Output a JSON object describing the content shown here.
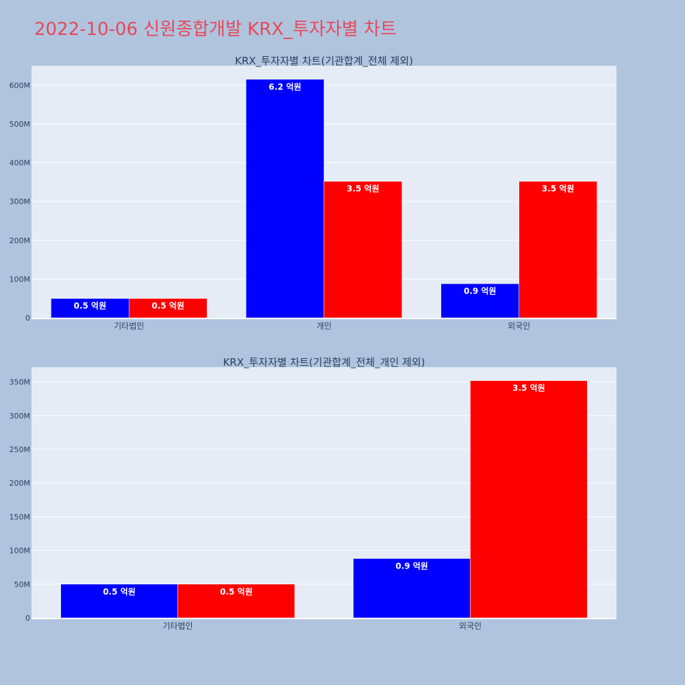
{
  "page": {
    "title": "2022-10-06 신원종합개발 KRX_투자자별 차트"
  },
  "chart_data": [
    {
      "type": "bar",
      "title": "KRX_투자자별 차트(기관합계_전체 제외)",
      "categories": [
        "기타법인",
        "개인",
        "외국인"
      ],
      "series": [
        {
          "color": "#0000ff",
          "values": [
            50000000,
            615000000,
            88000000
          ],
          "labels": [
            "0.5 억원",
            "6.2 억원",
            "0.9 억원"
          ]
        },
        {
          "color": "#ff0000",
          "values": [
            50000000,
            352000000,
            352000000
          ],
          "labels": [
            "0.5 억원",
            "3.5 억원",
            "3.5 억원"
          ]
        }
      ],
      "ylim": [
        0,
        650000000
      ],
      "yticks": [
        0,
        100000000,
        200000000,
        300000000,
        400000000,
        500000000,
        600000000
      ],
      "ytick_labels": [
        "0",
        "100M",
        "200M",
        "300M",
        "400M",
        "500M",
        "600M"
      ],
      "grid": true
    },
    {
      "type": "bar",
      "title": "KRX_투자자별 차트(기관합계_전체_개인 제외)",
      "categories": [
        "기타법인",
        "외국인"
      ],
      "series": [
        {
          "color": "#0000ff",
          "values": [
            50000000,
            88000000
          ],
          "labels": [
            "0.5 억원",
            "0.9 억원"
          ]
        },
        {
          "color": "#ff0000",
          "values": [
            50000000,
            352000000
          ],
          "labels": [
            "0.5 억원",
            "3.5 억원"
          ]
        }
      ],
      "ylim": [
        0,
        372000000
      ],
      "yticks": [
        0,
        50000000,
        100000000,
        150000000,
        200000000,
        250000000,
        300000000,
        350000000
      ],
      "ytick_labels": [
        "0",
        "50M",
        "100M",
        "150M",
        "200M",
        "250M",
        "300M",
        "350M"
      ],
      "grid": true
    }
  ]
}
